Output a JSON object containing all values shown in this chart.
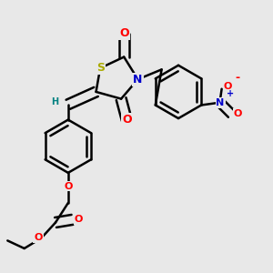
{
  "bg_color": "#e8e8e8",
  "bond_color": "#000000",
  "bond_width": 1.8,
  "dbo": 0.018,
  "atom_colors": {
    "S": "#aaaa00",
    "N": "#0000cc",
    "O": "#ff0000",
    "H": "#008080",
    "C": "#000000"
  },
  "figsize": [
    3.0,
    3.0
  ],
  "dpi": 100
}
